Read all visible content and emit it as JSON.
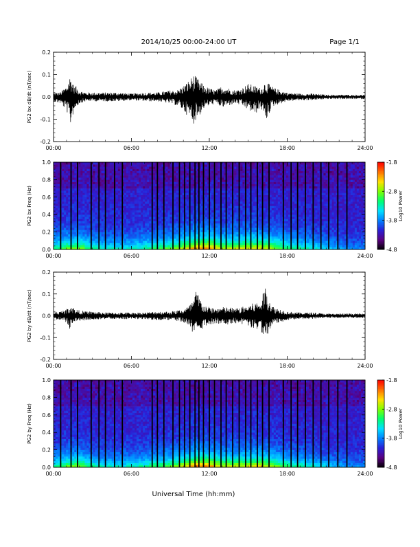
{
  "header": {
    "title": "2014/10/25  00:00-24:00 UT",
    "page": "Page 1/1"
  },
  "x_axis_title": "Universal Time (hh:mm)",
  "colors": {
    "trace": "#000000",
    "colormap": [
      "#000000",
      "#5a007f",
      "#2a1fd6",
      "#0080ff",
      "#00e0ff",
      "#00ff70",
      "#7fff00",
      "#ffe000",
      "#ff7000",
      "#ff0000"
    ]
  },
  "chart_data": [
    {
      "type": "line",
      "ylabel": "PG2 bx dB/dt (nT/sec)",
      "xlim": [
        0,
        24
      ],
      "ylim": [
        -0.2,
        0.2
      ],
      "xticks": [
        "00:00",
        "06:00",
        "12:00",
        "18:00",
        "24:00"
      ],
      "yticks": [
        "0.2",
        "0.1",
        "0.0",
        "-0.1",
        "-0.2"
      ],
      "x": [
        0,
        0.5,
        1.0,
        1.3,
        1.5,
        1.7,
        2.0,
        2.5,
        3.0,
        4.0,
        5.0,
        6.0,
        7.0,
        8.0,
        9.0,
        9.5,
        10.0,
        10.5,
        10.8,
        11.0,
        11.3,
        11.6,
        12.0,
        12.5,
        13.0,
        13.5,
        14.0,
        14.5,
        15.0,
        15.5,
        16.0,
        16.3,
        16.8,
        17.0,
        17.5,
        18.0,
        19.0,
        20.0,
        21.0,
        22.0,
        23.0,
        24.0
      ],
      "envelope_pos": [
        0.02,
        0.02,
        0.05,
        0.1,
        0.06,
        0.05,
        0.03,
        0.02,
        0.02,
        0.02,
        0.02,
        0.015,
        0.02,
        0.02,
        0.03,
        0.03,
        0.05,
        0.08,
        0.1,
        0.09,
        0.07,
        0.05,
        0.04,
        0.03,
        0.05,
        0.04,
        0.03,
        0.04,
        0.06,
        0.05,
        0.04,
        0.07,
        0.05,
        0.04,
        0.03,
        0.02,
        0.015,
        0.015,
        0.01,
        0.01,
        0.01,
        0.01
      ],
      "envelope_neg": [
        -0.02,
        -0.03,
        -0.06,
        -0.13,
        -0.08,
        -0.05,
        -0.03,
        -0.02,
        -0.02,
        -0.02,
        -0.02,
        -0.015,
        -0.02,
        -0.02,
        -0.03,
        -0.04,
        -0.06,
        -0.1,
        -0.12,
        -0.1,
        -0.08,
        -0.05,
        -0.04,
        -0.03,
        -0.05,
        -0.04,
        -0.03,
        -0.04,
        -0.06,
        -0.08,
        -0.05,
        -0.12,
        -0.05,
        -0.04,
        -0.03,
        -0.02,
        -0.015,
        -0.015,
        -0.01,
        -0.01,
        -0.01,
        -0.01
      ]
    },
    {
      "type": "heatmap",
      "ylabel": "PG2 bx Freq (Hz)",
      "xlim": [
        0,
        24
      ],
      "ylim": [
        0,
        1.0
      ],
      "xticks": [
        "00:00",
        "06:00",
        "12:00",
        "18:00",
        "24:00"
      ],
      "yticks": [
        "1.0",
        "0.8",
        "0.6",
        "0.4",
        "0.2",
        "0.0"
      ],
      "colorbar": {
        "label": "Log10 Power",
        "ticks": [
          "-1.8",
          "-2.8",
          "-3.8",
          "-4.8"
        ],
        "range": [
          -4.8,
          -1.8
        ]
      },
      "activity_x": [
        0,
        1,
        2,
        3,
        4,
        5,
        6,
        7,
        8,
        9,
        10,
        11,
        12,
        13,
        14,
        15,
        16,
        17,
        18,
        19,
        20,
        21,
        22,
        23,
        24
      ],
      "activity": [
        0.35,
        0.45,
        0.5,
        0.35,
        0.3,
        0.3,
        0.3,
        0.35,
        0.4,
        0.45,
        0.55,
        0.7,
        0.7,
        0.55,
        0.55,
        0.6,
        0.6,
        0.5,
        0.4,
        0.35,
        0.3,
        0.25,
        0.2,
        0.15,
        0.15
      ],
      "gaps_hours": [
        0.55,
        1.35,
        1.85,
        2.9,
        3.5,
        4.0,
        4.7,
        5.3,
        7.6,
        8.0,
        8.5,
        9.2,
        9.7,
        10.1,
        10.5,
        10.9,
        11.2,
        11.55,
        12.0,
        12.4,
        12.9,
        13.3,
        13.8,
        14.3,
        14.8,
        15.2,
        15.7,
        16.1,
        16.6,
        17.7,
        18.3,
        18.8,
        19.4,
        20.0,
        20.6,
        21.2,
        21.9,
        22.6
      ]
    },
    {
      "type": "line",
      "ylabel": "PG2 by dB/dt (nT/sec)",
      "xlim": [
        0,
        24
      ],
      "ylim": [
        -0.2,
        0.2
      ],
      "xticks": [
        "00:00",
        "06:00",
        "12:00",
        "18:00",
        "24:00"
      ],
      "yticks": [
        "0.2",
        "0.1",
        "0.0",
        "-0.1",
        "-0.2"
      ],
      "x": [
        0,
        0.5,
        1.0,
        1.3,
        1.5,
        1.7,
        2.0,
        2.5,
        3.0,
        4.0,
        5.0,
        6.0,
        7.0,
        8.0,
        9.0,
        9.5,
        10.0,
        10.5,
        10.8,
        11.0,
        11.3,
        11.6,
        12.0,
        12.5,
        13.0,
        13.5,
        14.0,
        14.5,
        15.0,
        15.5,
        16.0,
        16.3,
        16.8,
        17.0,
        17.5,
        18.0,
        19.0,
        20.0,
        21.0,
        22.0,
        23.0,
        24.0
      ],
      "envelope_pos": [
        0.02,
        0.02,
        0.03,
        0.05,
        0.04,
        0.03,
        0.025,
        0.02,
        0.02,
        0.015,
        0.015,
        0.015,
        0.015,
        0.02,
        0.02,
        0.025,
        0.03,
        0.05,
        0.08,
        0.12,
        0.08,
        0.05,
        0.04,
        0.035,
        0.04,
        0.04,
        0.035,
        0.04,
        0.05,
        0.06,
        0.07,
        0.14,
        0.05,
        0.04,
        0.03,
        0.02,
        0.015,
        0.015,
        0.01,
        0.01,
        0.01,
        0.01
      ],
      "envelope_neg": [
        -0.02,
        -0.02,
        -0.03,
        -0.07,
        -0.04,
        -0.03,
        -0.025,
        -0.02,
        -0.02,
        -0.015,
        -0.015,
        -0.015,
        -0.015,
        -0.02,
        -0.02,
        -0.025,
        -0.03,
        -0.05,
        -0.11,
        -0.08,
        -0.07,
        -0.05,
        -0.04,
        -0.035,
        -0.04,
        -0.04,
        -0.035,
        -0.04,
        -0.05,
        -0.06,
        -0.07,
        -0.12,
        -0.05,
        -0.04,
        -0.03,
        -0.02,
        -0.015,
        -0.015,
        -0.01,
        -0.01,
        -0.01,
        -0.01
      ]
    },
    {
      "type": "heatmap",
      "ylabel": "PG2 by Freq (Hz)",
      "xlim": [
        0,
        24
      ],
      "ylim": [
        0,
        1.0
      ],
      "xticks": [
        "00:00",
        "06:00",
        "12:00",
        "18:00",
        "24:00"
      ],
      "yticks": [
        "1.0",
        "0.8",
        "0.6",
        "0.4",
        "0.2",
        "0.0"
      ],
      "colorbar": {
        "label": "Log10 Power",
        "ticks": [
          "-1.8",
          "-2.8",
          "-3.8",
          "-4.8"
        ],
        "range": [
          -4.8,
          -1.8
        ]
      },
      "activity_x": [
        0,
        1,
        2,
        3,
        4,
        5,
        6,
        7,
        8,
        9,
        10,
        11,
        12,
        13,
        14,
        15,
        16,
        17,
        18,
        19,
        20,
        21,
        22,
        23,
        24
      ],
      "activity": [
        0.35,
        0.45,
        0.5,
        0.35,
        0.3,
        0.3,
        0.3,
        0.35,
        0.4,
        0.45,
        0.55,
        0.72,
        0.7,
        0.55,
        0.55,
        0.58,
        0.6,
        0.5,
        0.4,
        0.35,
        0.3,
        0.25,
        0.2,
        0.15,
        0.15
      ],
      "gaps_hours": [
        0.55,
        1.35,
        1.85,
        2.9,
        3.5,
        4.0,
        4.7,
        5.3,
        7.6,
        8.0,
        8.5,
        9.2,
        9.7,
        10.1,
        10.5,
        10.9,
        11.2,
        11.55,
        12.0,
        12.4,
        12.9,
        13.3,
        13.8,
        14.3,
        14.8,
        15.2,
        15.7,
        16.1,
        16.6,
        17.7,
        18.3,
        18.8,
        19.4,
        20.0,
        20.6,
        21.2,
        21.9,
        22.6
      ]
    }
  ]
}
